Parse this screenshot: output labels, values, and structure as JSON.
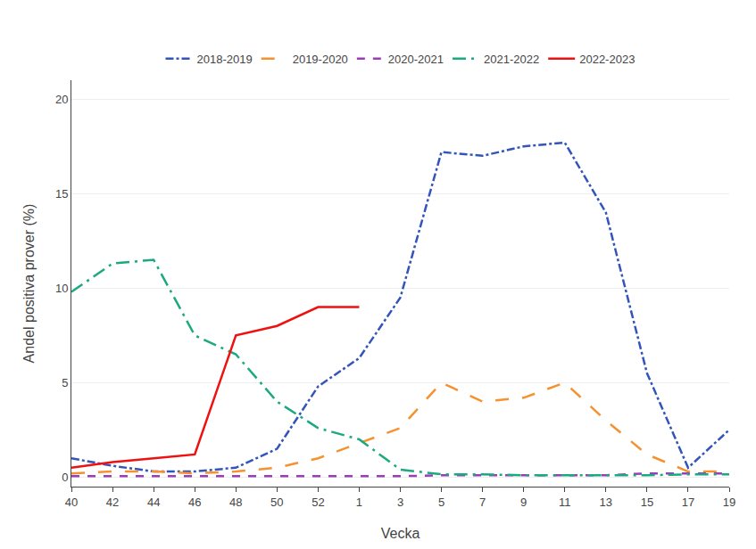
{
  "chart_data": {
    "type": "line",
    "xlabel": "Vecka",
    "ylabel": "Andel positiva prover (%)",
    "categories": [
      "40",
      "42",
      "44",
      "46",
      "48",
      "50",
      "52",
      "1",
      "3",
      "5",
      "7",
      "9",
      "11",
      "13",
      "15",
      "17",
      "19"
    ],
    "series": [
      {
        "name": "2018-2019",
        "color": "#3355BB",
        "line_style": "dashdot",
        "values": [
          1.0,
          0.6,
          0.3,
          0.3,
          0.5,
          1.5,
          4.8,
          6.3,
          9.5,
          17.2,
          17.0,
          17.5,
          17.7,
          14.0,
          5.5,
          0.5,
          2.5
        ]
      },
      {
        "name": "2019-2020",
        "color": "#F5922F",
        "line_style": "longdash",
        "values": [
          0.2,
          0.3,
          0.3,
          0.2,
          0.3,
          0.5,
          1.0,
          1.8,
          2.6,
          5.0,
          4.0,
          4.2,
          5.0,
          3.0,
          1.2,
          0.3,
          0.3
        ]
      },
      {
        "name": "2020-2021",
        "color": "#9B3DBB",
        "line_style": "dash",
        "values": [
          0.05,
          0.05,
          0.05,
          0.05,
          0.05,
          0.05,
          0.05,
          0.05,
          0.05,
          0.1,
          0.1,
          0.1,
          0.1,
          0.1,
          0.2,
          0.2,
          0.2
        ]
      },
      {
        "name": "2021-2022",
        "color": "#1BAA80",
        "line_style": "longdashdot",
        "values": [
          9.8,
          11.3,
          11.5,
          7.5,
          6.5,
          4.0,
          2.6,
          2.0,
          0.4,
          0.15,
          0.15,
          0.1,
          0.1,
          0.1,
          0.1,
          0.15,
          0.15
        ]
      },
      {
        "name": "2022-2023",
        "color": "#EE1111",
        "line_style": "solid",
        "values": [
          0.5,
          0.8,
          1.0,
          1.2,
          7.5,
          8.0,
          9.0,
          9.0,
          null,
          null,
          null,
          null,
          null,
          null,
          null,
          null,
          null
        ]
      }
    ],
    "ylim": [
      -0.5,
      21
    ],
    "yticks": [
      0,
      5,
      10,
      15,
      20
    ],
    "grid": true,
    "legend": "top"
  }
}
